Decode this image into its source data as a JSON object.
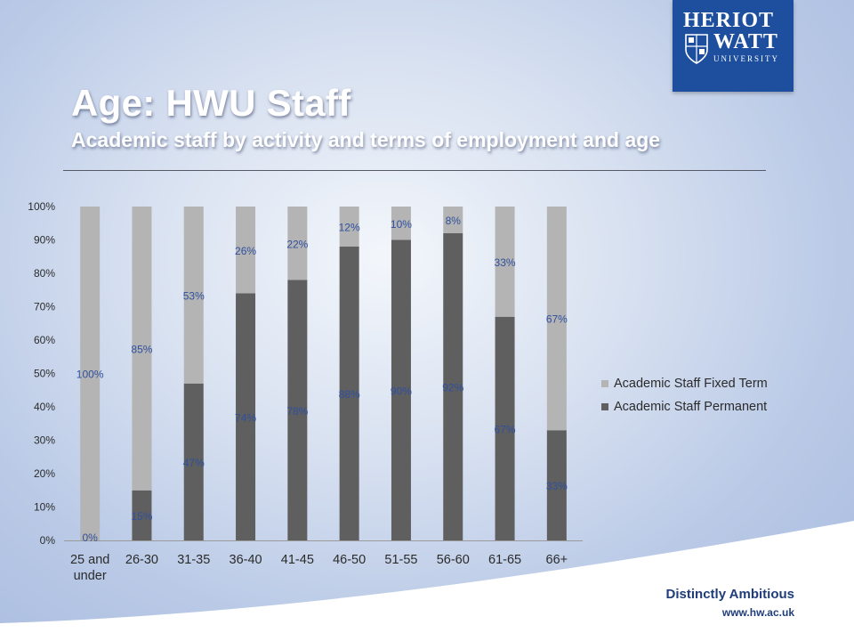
{
  "header": {
    "title": "Age: HWU Staff",
    "subtitle": "Academic staff by activity and terms of employment and age"
  },
  "logo": {
    "line1": "HERIOT",
    "line2": "WATT",
    "line3": "UNIVERSITY"
  },
  "footer": {
    "tagline": "Distinctly Ambitious",
    "url": "www.hw.ac.uk"
  },
  "colors": {
    "fixed_term": "#b4b4b4",
    "permanent": "#5f5f5f",
    "label": "#2f4f9f",
    "logo_blue": "#1d4f9e"
  },
  "chart_data": {
    "type": "bar",
    "stacked": true,
    "percent": true,
    "categories": [
      "25 and under",
      "26-30",
      "31-35",
      "36-40",
      "41-45",
      "46-50",
      "51-55",
      "56-60",
      "61-65",
      "66+"
    ],
    "series": [
      {
        "name": "Academic Staff  Permanent",
        "values": [
          0,
          15,
          47,
          74,
          78,
          88,
          90,
          92,
          67,
          33
        ]
      },
      {
        "name": "Academic Staff  Fixed Term",
        "values": [
          100,
          85,
          53,
          26,
          22,
          12,
          10,
          8,
          33,
          67
        ]
      }
    ],
    "ylim": [
      0,
      100
    ],
    "yticks": [
      "0%",
      "10%",
      "20%",
      "30%",
      "40%",
      "50%",
      "60%",
      "70%",
      "80%",
      "90%",
      "100%"
    ],
    "data_labels": {
      "permanent": [
        "0%",
        "15%",
        "47%",
        "74%",
        "78%",
        "88%",
        "90%",
        "92%",
        "67%",
        "33%"
      ],
      "fixed_term": [
        "100%",
        "85%",
        "53%",
        "26%",
        "22%",
        "12%",
        "10%",
        "8%",
        "33%",
        "67%"
      ]
    },
    "legend_position": "right",
    "legend": [
      "Academic Staff  Fixed Term",
      "Academic Staff  Permanent"
    ],
    "grid": false
  }
}
